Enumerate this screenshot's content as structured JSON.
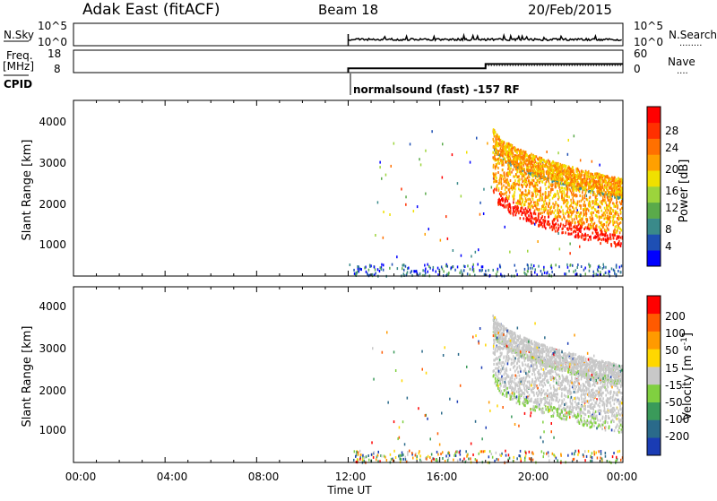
{
  "header": {
    "station": "Adak East (fitACF)",
    "beam": "Beam 18",
    "date": "20/Feb/2015"
  },
  "noise_panel": {
    "left_label": "N.Sky",
    "left_ticks": [
      "10^5",
      "10^0"
    ],
    "right_ticks": [
      "10^5",
      "10^0"
    ],
    "right_label": "N.Search",
    "right_label_dots": "........"
  },
  "freq_panel": {
    "left_label_1": "Freq.",
    "left_label_2": "[MHz]",
    "left_ticks": [
      "18",
      "8"
    ],
    "right_ticks": [
      "60",
      "0"
    ],
    "right_label": "Nave",
    "right_label_dots": "...."
  },
  "cpid": {
    "label": "CPID",
    "mode_text": "normalsound (fast) -157 RF"
  },
  "power_panel": {
    "ylabel": "Slant Range [km]",
    "yticks": [
      "4000",
      "3000",
      "2000",
      "1000"
    ],
    "colorbar_label": "Power [dB]",
    "colorbar_ticks": [
      "28",
      "24",
      "20",
      "16",
      "12",
      "8",
      "4"
    ],
    "colorbar_colors": [
      "#0000ff",
      "#1e4fb4",
      "#3a8a8a",
      "#5aaa4a",
      "#9cd43c",
      "#f0e000",
      "#ffa000",
      "#ff7000",
      "#ff3000",
      "#ff0000"
    ]
  },
  "velocity_panel": {
    "ylabel": "Slant Range [km]",
    "yticks": [
      "4000",
      "3000",
      "2000",
      "1000"
    ],
    "colorbar_label": "Velocity [m s",
    "colorbar_label_sup": "-1",
    "colorbar_label_end": "]",
    "colorbar_ticks": [
      "200",
      "100",
      "50",
      "15",
      "-15",
      "-50",
      "-100",
      "-200"
    ],
    "colorbar_colors": [
      "#1a3cb4",
      "#2a6a8a",
      "#3a9a5a",
      "#80d040",
      "#c8c8c8",
      "#ffd700",
      "#ff9a00",
      "#ff5a00",
      "#ff0000"
    ]
  },
  "xaxis": {
    "ticks": [
      "00:00",
      "04:00",
      "08:00",
      "12:00",
      "16:00",
      "20:00",
      "00:00"
    ],
    "label": "Time UT"
  },
  "chart_data": {
    "type": "heatmap",
    "x_unit": "hours UT",
    "xlim": [
      0,
      24
    ],
    "ylim_km": [
      180,
      4500
    ],
    "data_start_hour": 12,
    "noise_sky_level": "about 10^1 (log scale, 10^0 to 10^5)",
    "frequency_mhz": [
      {
        "from": 12,
        "to": 18,
        "value": 10
      },
      {
        "from": 18,
        "to": 24,
        "value": 12
      }
    ],
    "nave": [
      {
        "from": 18,
        "to": 24,
        "value": 20
      }
    ],
    "power_colorbar_range_db": [
      0,
      30
    ],
    "velocity_colorbar_range_ms": [
      -250,
      250
    ],
    "echo_bands": [
      {
        "name": "upper band",
        "start_hour": 18.3,
        "end_hour": 24,
        "start_km": 3500,
        "end_km": 2150
      },
      {
        "name": "lower band",
        "start_hour": 18.3,
        "end_hour": 24,
        "start_km": 2300,
        "end_km": 950
      }
    ]
  }
}
